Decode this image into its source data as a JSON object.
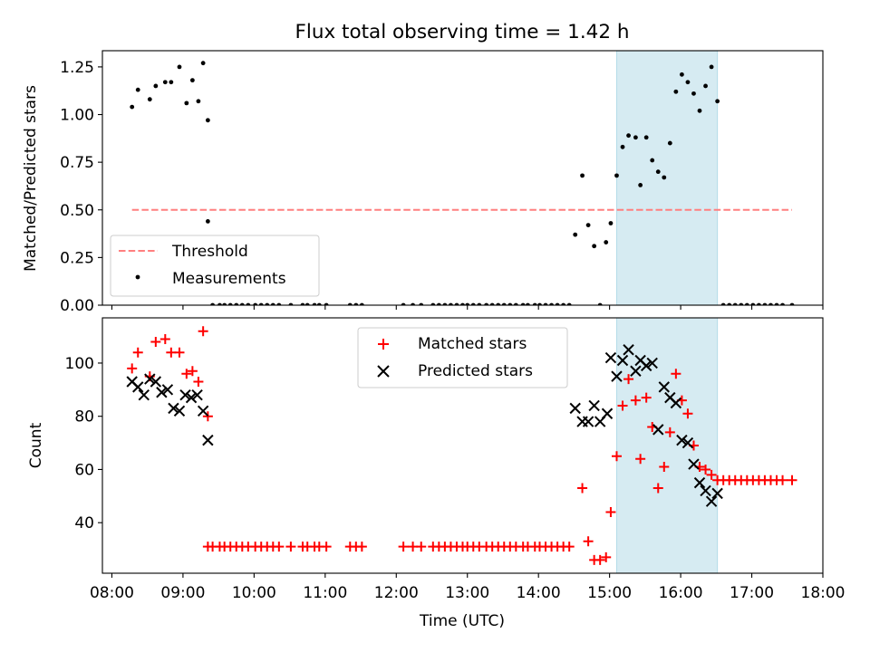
{
  "title": "Flux total observing time = 1.42 h",
  "colors": {
    "threshold": "#ff7f7f",
    "measurements": "#000000",
    "matched": "#ff0000",
    "predicted": "#000000",
    "shade": "#add8e6"
  },
  "chart_data": [
    {
      "type": "scatter",
      "name": "ratio-panel",
      "ylabel": "Matched/Predicted stars",
      "xlim": [
        "07:52",
        "18:00"
      ],
      "ylim": [
        0,
        1.335
      ],
      "yticks": [
        0,
        0.25,
        0.5,
        0.75,
        1.0,
        1.25
      ],
      "ytick_labels": [
        "0.00",
        "0.25",
        "0.50",
        "0.75",
        "1.00",
        "1.25"
      ],
      "shaded_span": [
        "15:06",
        "16:31"
      ],
      "threshold": {
        "label": "Threshold",
        "value": 0.5,
        "x_range": [
          "08:17",
          "17:34"
        ]
      },
      "legend": {
        "position": "lower-left",
        "entries": [
          "Threshold",
          "Measurements"
        ]
      },
      "series": [
        {
          "name": "Measurements",
          "x": [
            "08:17",
            "08:22",
            "08:32",
            "08:37",
            "08:45",
            "08:50",
            "08:57",
            "09:03",
            "09:08",
            "09:13",
            "09:17",
            "09:21",
            "09:21",
            "09:25",
            "09:31",
            "09:35",
            "09:40",
            "09:45",
            "09:50",
            "09:55",
            "10:01",
            "10:06",
            "10:11",
            "10:16",
            "10:21",
            "10:31",
            "10:41",
            "10:45",
            "10:51",
            "10:55",
            "11:01",
            "11:21",
            "11:26",
            "11:31",
            "12:06",
            "12:14",
            "12:21",
            "12:31",
            "12:36",
            "12:41",
            "12:46",
            "12:51",
            "12:56",
            "13:00",
            "13:05",
            "13:10",
            "13:16",
            "13:21",
            "13:26",
            "13:31",
            "13:36",
            "13:41",
            "13:47",
            "13:51",
            "13:57",
            "14:01",
            "14:06",
            "14:11",
            "14:16",
            "14:21",
            "14:26",
            "14:31",
            "14:37",
            "14:42",
            "14:47",
            "14:52",
            "14:57",
            "15:01",
            "15:06",
            "15:11",
            "15:16",
            "15:22",
            "15:26",
            "15:31",
            "15:36",
            "15:41",
            "15:46",
            "15:51",
            "15:56",
            "16:01",
            "16:06",
            "16:11",
            "16:16",
            "16:21",
            "16:26",
            "16:31",
            "16:36",
            "16:41",
            "16:46",
            "16:51",
            "16:56",
            "17:01",
            "17:06",
            "17:11",
            "17:16",
            "17:21",
            "17:26",
            "17:34"
          ],
          "y": [
            1.04,
            1.13,
            1.08,
            1.15,
            1.17,
            1.17,
            1.25,
            1.06,
            1.18,
            1.07,
            1.27,
            0.97,
            0.44,
            0.0,
            0.0,
            0.0,
            0.0,
            0.0,
            0.0,
            0.0,
            0.0,
            0.0,
            0.0,
            0.0,
            0.0,
            0.0,
            0.0,
            0.0,
            0.0,
            0.0,
            0.0,
            0.0,
            0.0,
            0.0,
            0.0,
            0.0,
            0.0,
            0.0,
            0.0,
            0.0,
            0.0,
            0.0,
            0.0,
            0.0,
            0.0,
            0.0,
            0.0,
            0.0,
            0.0,
            0.0,
            0.0,
            0.0,
            0.0,
            0.0,
            0.0,
            0.0,
            0.0,
            0.0,
            0.0,
            0.0,
            0.0,
            0.37,
            0.68,
            0.42,
            0.31,
            0.0,
            0.33,
            0.43,
            0.68,
            0.83,
            0.89,
            0.88,
            0.63,
            0.88,
            0.76,
            0.7,
            0.67,
            0.85,
            1.12,
            1.21,
            1.17,
            1.11,
            1.02,
            1.15,
            1.25,
            1.07,
            0.0,
            0.0,
            0.0,
            0.0,
            0.0,
            0.0,
            0.0,
            0.0,
            0.0,
            0.0,
            0.0,
            0.0
          ]
        }
      ]
    },
    {
      "type": "scatter",
      "name": "count-panel",
      "ylabel": "Count",
      "xlabel": "Time (UTC)",
      "xlim": [
        "07:52",
        "18:00"
      ],
      "ylim": [
        21,
        117
      ],
      "xticks": [
        "08:00",
        "09:00",
        "10:00",
        "11:00",
        "12:00",
        "13:00",
        "14:00",
        "15:00",
        "16:00",
        "17:00",
        "18:00"
      ],
      "yticks": [
        40,
        60,
        80,
        100
      ],
      "ytick_labels": [
        "40",
        "60",
        "80",
        "100"
      ],
      "shaded_span": [
        "15:06",
        "16:31"
      ],
      "legend": {
        "position": "upper-center",
        "entries": [
          "Matched stars",
          "Predicted stars"
        ]
      },
      "series": [
        {
          "name": "Matched stars",
          "marker": "+",
          "x": [
            "08:17",
            "08:22",
            "08:32",
            "08:37",
            "08:45",
            "08:50",
            "08:57",
            "09:03",
            "09:08",
            "09:13",
            "09:17",
            "09:21",
            "09:21",
            "09:25",
            "09:31",
            "09:35",
            "09:40",
            "09:45",
            "09:50",
            "09:55",
            "10:01",
            "10:06",
            "10:11",
            "10:16",
            "10:21",
            "10:31",
            "10:41",
            "10:45",
            "10:51",
            "10:55",
            "11:01",
            "11:21",
            "11:26",
            "11:31",
            "12:06",
            "12:14",
            "12:21",
            "12:31",
            "12:36",
            "12:41",
            "12:46",
            "12:51",
            "12:56",
            "13:00",
            "13:05",
            "13:10",
            "13:16",
            "13:21",
            "13:26",
            "13:31",
            "13:36",
            "13:41",
            "13:47",
            "13:51",
            "13:57",
            "14:01",
            "14:06",
            "14:11",
            "14:16",
            "14:21",
            "14:26",
            "14:37",
            "14:42",
            "14:47",
            "14:52",
            "14:57",
            "15:01",
            "15:06",
            "15:11",
            "15:16",
            "15:22",
            "15:26",
            "15:31",
            "15:36",
            "15:41",
            "15:46",
            "15:51",
            "15:56",
            "16:01",
            "16:06",
            "16:11",
            "16:16",
            "16:21",
            "16:26",
            "16:31",
            "16:36",
            "16:41",
            "16:46",
            "16:51",
            "16:56",
            "17:01",
            "17:06",
            "17:11",
            "17:16",
            "17:21",
            "17:26",
            "17:34"
          ],
          "y": [
            98,
            104,
            95,
            108,
            109,
            104,
            104,
            96,
            97,
            93,
            112,
            80,
            31,
            31,
            31,
            31,
            31,
            31,
            31,
            31,
            31,
            31,
            31,
            31,
            31,
            31,
            31,
            31,
            31,
            31,
            31,
            31,
            31,
            31,
            31,
            31,
            31,
            31,
            31,
            31,
            31,
            31,
            31,
            31,
            31,
            31,
            31,
            31,
            31,
            31,
            31,
            31,
            31,
            31,
            31,
            31,
            31,
            31,
            31,
            31,
            31,
            53,
            33,
            26,
            26,
            27,
            44,
            65,
            84,
            94,
            86,
            64,
            87,
            76,
            53,
            61,
            74,
            96,
            86,
            81,
            69,
            61,
            60,
            58,
            56,
            56,
            56,
            56,
            56,
            56,
            56,
            56,
            56,
            56,
            56,
            56,
            56
          ]
        },
        {
          "name": "Predicted stars",
          "marker": "x",
          "x": [
            "08:17",
            "08:22",
            "08:27",
            "08:32",
            "08:37",
            "08:42",
            "08:47",
            "08:52",
            "08:57",
            "09:02",
            "09:07",
            "09:12",
            "09:17",
            "09:21",
            "14:31",
            "14:37",
            "14:42",
            "14:47",
            "14:52",
            "14:58",
            "15:01",
            "15:06",
            "15:11",
            "15:16",
            "15:22",
            "15:26",
            "15:31",
            "15:36",
            "15:41",
            "15:46",
            "15:51",
            "15:56",
            "16:01",
            "16:06",
            "16:11",
            "16:16",
            "16:21",
            "16:26",
            "16:31"
          ],
          "y": [
            93,
            91,
            88,
            94,
            93,
            89,
            90,
            83,
            82,
            88,
            87,
            88,
            82,
            71,
            83,
            78,
            78,
            84,
            78,
            81,
            102,
            95,
            101,
            105,
            97,
            101,
            99,
            100,
            75,
            91,
            87,
            85,
            71,
            70,
            62,
            55,
            52,
            48,
            51
          ]
        }
      ]
    }
  ]
}
